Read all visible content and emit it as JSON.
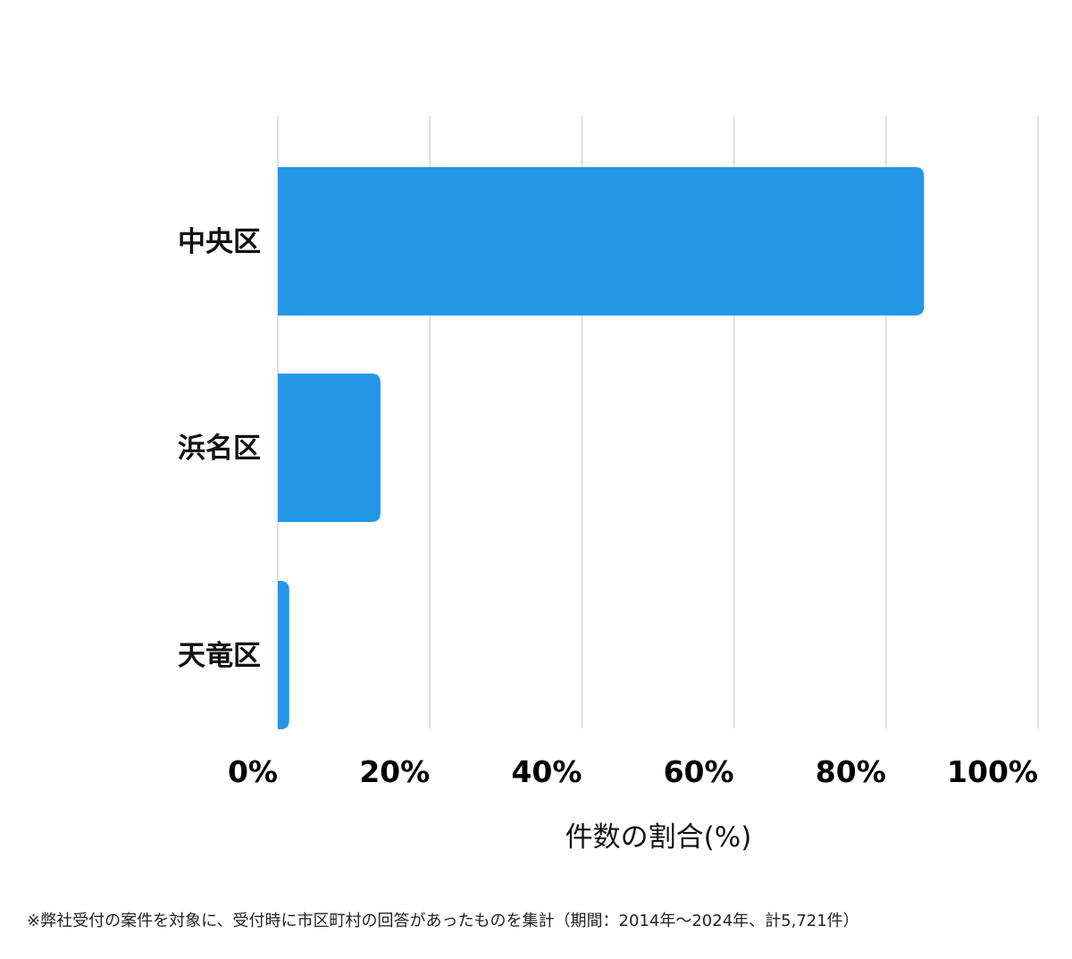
{
  "chart_data": {
    "type": "bar",
    "orientation": "horizontal",
    "categories": [
      "中央区",
      "浜名区",
      "天竜区"
    ],
    "values": [
      85,
      13.5,
      1.5
    ],
    "xlabel": "件数の割合(%)",
    "ylabel": "",
    "xlim": [
      0,
      100
    ],
    "xticks": [
      0,
      20,
      40,
      60,
      80,
      100
    ],
    "tick_labels": [
      "0%",
      "20%",
      "40%",
      "60%",
      "80%",
      "100%"
    ],
    "grid": true,
    "legend": "none",
    "bar_color": "#2596e5",
    "grid_color": "#d6d6d6"
  },
  "footnote": "※弊社受付の案件を対象に、受付時に市区町村の回答があったものを集計（期間：2014年〜2024年、計5,721件）"
}
